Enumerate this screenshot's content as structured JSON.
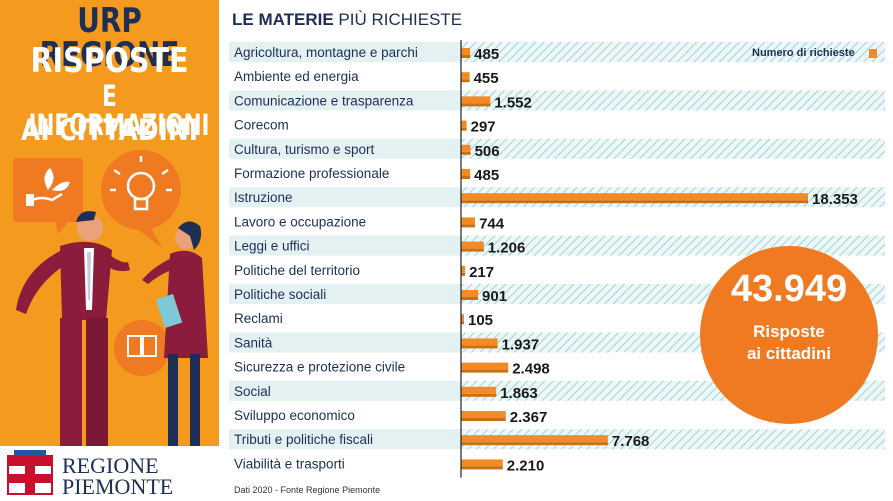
{
  "header": {
    "line1": "URP REGIONE",
    "line2": "RISPOSTE",
    "line3": "E INFORMAZIONI",
    "line4": "AI CITTADINI"
  },
  "logo": {
    "line1": "REGIONE",
    "line2": "PIEMONTE"
  },
  "chart_title_bold": "LE MATERIE",
  "chart_title_rest": " PIÙ RICHIESTE",
  "source_note": "Dati 2020 - Fonte Regione Piemonte",
  "total": {
    "value": "43.949",
    "line1": "Risposte",
    "line2": "ai cittadini"
  },
  "colors": {
    "panel": "#f39a1f",
    "navy": "#1d2f55",
    "bar": "#f28a25",
    "bar_shadow": "#c96f14",
    "stripe": "#9fd3d6",
    "circle": "#f07a22"
  },
  "chart_data": {
    "type": "bar",
    "orientation": "horizontal",
    "legend": "Numero di richieste",
    "legend_position": "top-right",
    "categories": [
      "Agricoltura, montagne e parchi",
      "Ambiente ed energia",
      "Comunicazione e trasparenza",
      "Corecom",
      "Cultura, turismo e sport",
      "Formazione professionale",
      "Istruzione",
      "Lavoro e occupazione",
      "Leggi e uffici",
      "Politiche del territorio",
      "Politiche sociali",
      "Reclami",
      "Sanità",
      "Sicurezza e protezione civile",
      "Social",
      "Sviluppo economico",
      "Tributi e politiche fiscali",
      "Viabilità e trasporti"
    ],
    "values": [
      485,
      455,
      1552,
      297,
      506,
      485,
      18353,
      744,
      1206,
      217,
      901,
      105,
      1937,
      2498,
      1863,
      2367,
      7768,
      2210
    ],
    "value_labels": [
      "485",
      "455",
      "1.552",
      "297",
      "506",
      "485",
      "18.353",
      "744",
      "1.206",
      "217",
      "901",
      "105",
      "1.937",
      "2.498",
      "1.863",
      "2.367",
      "7.768",
      "2.210"
    ],
    "xlim": [
      0,
      18353
    ]
  }
}
